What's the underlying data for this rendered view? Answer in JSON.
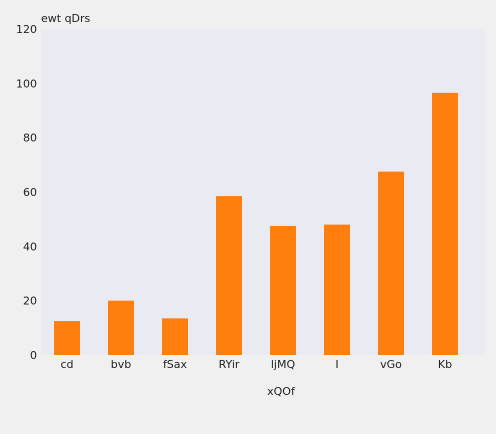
{
  "chart_data": {
    "type": "bar",
    "categories": [
      "cd",
      "bvb",
      "fSax",
      "RYir",
      "ljMQ",
      "I",
      "vGo",
      "Kb"
    ],
    "values": [
      12.5,
      20,
      13.5,
      58.5,
      47.5,
      48,
      67.5,
      96.5
    ],
    "title": "",
    "xlabel": "xQOf",
    "ylabel": "ewt qDrs",
    "ylim": [
      0,
      120
    ],
    "yticks": [
      0,
      20,
      40,
      60,
      80,
      100,
      120
    ],
    "grid": false,
    "colors": {
      "bar": "#ff7f0e",
      "plot_bg": "#eaeaf2",
      "page_bg": "#f0f0f0"
    }
  }
}
